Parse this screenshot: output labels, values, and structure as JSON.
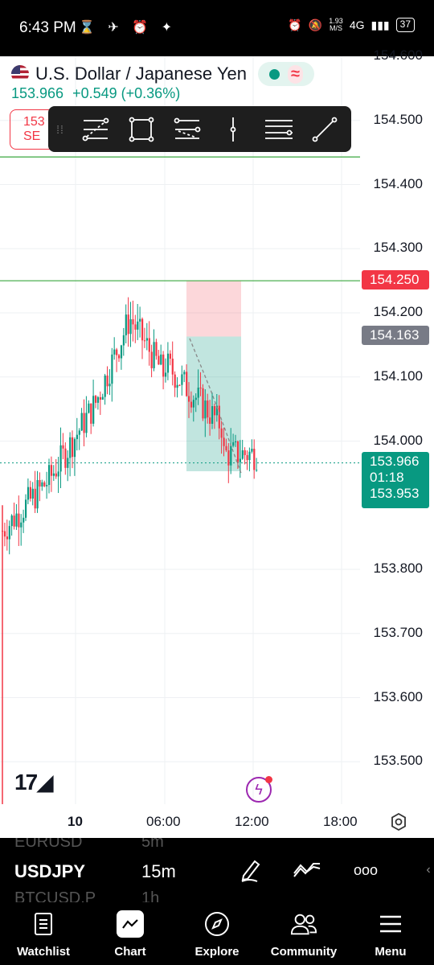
{
  "status_bar": {
    "time": "6:43 PM",
    "icons": "⌛ ✈ ⏰ ✦",
    "speed_value": "1.93",
    "speed_unit": "M/S",
    "network": "4G",
    "battery": "37"
  },
  "header": {
    "title": "U.S. Dollar / Japanese Yen",
    "last_price": "153.966",
    "change": "+0.549 (+0.36%)",
    "sell_label_top": "153",
    "sell_label_bottom": "SE"
  },
  "price_scale": {
    "ticks": [
      "154.600",
      "154.500",
      "154.400",
      "154.300",
      "154.200",
      "154.100",
      "154.000",
      "153.800",
      "153.700",
      "153.600",
      "153.500"
    ]
  },
  "price_badges": {
    "stop": "154.250",
    "entry": "154.163",
    "current": "153.966",
    "countdown": "01:18",
    "target": "153.953"
  },
  "time_scale": {
    "labels": [
      "10",
      "06:00",
      "12:00",
      "18:00"
    ]
  },
  "bottom_panel": {
    "ghost_top_symbol": "EURUSD",
    "ghost_top_tf": "5m",
    "symbol": "USDJPY",
    "timeframe": "15m",
    "ghost_bottom_symbol": "BTCUSD.P",
    "ghost_bottom_tf": "1h"
  },
  "nav": {
    "items": [
      {
        "label": "Watchlist"
      },
      {
        "label": "Chart"
      },
      {
        "label": "Explore"
      },
      {
        "label": "Community"
      },
      {
        "label": "Menu"
      }
    ]
  },
  "colors": {
    "up": "#089981",
    "down": "#f23645",
    "line": "#4caf50"
  }
}
